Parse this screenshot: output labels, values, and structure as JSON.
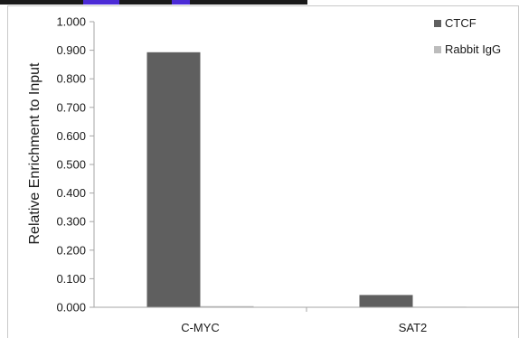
{
  "colors": {
    "accent": "#4b2bd6",
    "ctcf": "#5f5f5f",
    "rabbit_igg": "#bcbcbc",
    "axis": "#a6a6a6",
    "frame": "#c9c9c9"
  },
  "chart_data": {
    "type": "bar",
    "ylabel": "Relative Enrichment to Input",
    "ylim": [
      0,
      1.0
    ],
    "y_ticks": [
      "0.000",
      "0.100",
      "0.200",
      "0.300",
      "0.400",
      "0.500",
      "0.600",
      "0.700",
      "0.800",
      "0.900",
      "1.000"
    ],
    "categories": [
      "C-MYC",
      "SAT2"
    ],
    "series": [
      {
        "name": "CTCF",
        "values": [
          0.893,
          0.043
        ],
        "color": "#5f5f5f"
      },
      {
        "name": "Rabbit IgG",
        "values": [
          0.004,
          0.002
        ],
        "color": "#bcbcbc"
      }
    ],
    "legend": "top-right",
    "grid": false
  }
}
